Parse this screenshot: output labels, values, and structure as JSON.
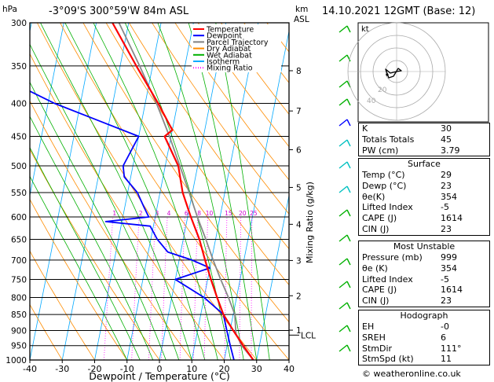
{
  "header": {
    "location": "-3°09'S  300°59'W  84m  ASL",
    "datetime": "14.10.2021  12GMT  (Base: 12)"
  },
  "axes": {
    "pressure_unit": "hPa",
    "height_unit_km": "km",
    "height_unit_asl": "ASL",
    "xlabel": "Dewpoint / Temperature (°C)",
    "mixing_ratio_label": "Mixing Ratio (g/kg)",
    "pressure_ticks": [
      "300",
      "350",
      "400",
      "450",
      "500",
      "550",
      "600",
      "650",
      "700",
      "750",
      "800",
      "850",
      "900",
      "950",
      "1000"
    ],
    "temp_ticks": [
      "-40",
      "-30",
      "-20",
      "-10",
      "0",
      "10",
      "20",
      "30",
      "40"
    ],
    "km_ticks": [
      "8",
      "7",
      "6",
      "5",
      "4",
      "3",
      "2",
      "1"
    ],
    "lcl_label": "LCL",
    "mixing_ratio_values": [
      "1",
      "2",
      "3",
      "4",
      "6",
      "8",
      "10",
      "15",
      "20",
      "25"
    ]
  },
  "legend": {
    "items": [
      {
        "label": "Temperature",
        "color": "#ff0000"
      },
      {
        "label": "Dewpoint",
        "color": "#0000ff"
      },
      {
        "label": "Parcel Trajectory",
        "color": "#808080"
      },
      {
        "label": "Dry Adiabat",
        "color": "#ff8c00"
      },
      {
        "label": "Wet Adiabat",
        "color": "#00b000"
      },
      {
        "label": "Isotherm",
        "color": "#00aaff"
      },
      {
        "label": "Mixing Ratio",
        "color": "#ff00ff"
      }
    ]
  },
  "hodograph": {
    "unit": "kt",
    "ring_labels": [
      "20",
      "40"
    ]
  },
  "indices": {
    "rows": [
      {
        "label": "K",
        "value": "30"
      },
      {
        "label": "Totals Totals",
        "value": "45"
      },
      {
        "label": "PW (cm)",
        "value": "3.79"
      }
    ]
  },
  "surface": {
    "title": "Surface",
    "rows": [
      {
        "label": "Temp (°C)",
        "value": "29"
      },
      {
        "label": "Dewp (°C)",
        "value": "23"
      },
      {
        "label": "θe(K)",
        "value": "354"
      },
      {
        "label": "Lifted Index",
        "value": "-5"
      },
      {
        "label": "CAPE (J)",
        "value": "1614"
      },
      {
        "label": "CIN (J)",
        "value": "23"
      }
    ]
  },
  "most_unstable": {
    "title": "Most Unstable",
    "rows": [
      {
        "label": "Pressure (mb)",
        "value": "999"
      },
      {
        "label": "θe (K)",
        "value": "354"
      },
      {
        "label": "Lifted Index",
        "value": "-5"
      },
      {
        "label": "CAPE (J)",
        "value": "1614"
      },
      {
        "label": "CIN (J)",
        "value": "23"
      }
    ]
  },
  "hodograph_table": {
    "title": "Hodograph",
    "rows": [
      {
        "label": "EH",
        "value": "-0"
      },
      {
        "label": "SREH",
        "value": "6"
      },
      {
        "label": "StmDir",
        "value": "111°"
      },
      {
        "label": "StmSpd (kt)",
        "value": "11"
      }
    ]
  },
  "credit": "© weatheronline.co.uk",
  "chart_data": {
    "type": "line",
    "title": "",
    "xlabel": "Dewpoint / Temperature (°C)",
    "ylabel": "hPa",
    "xlim": [
      -40,
      40
    ],
    "ylim": [
      1000,
      300
    ],
    "y_scale": "log",
    "skew": "skew-T",
    "series": [
      {
        "name": "Temperature",
        "color": "#ff0000",
        "p": [
          1000,
          950,
          900,
          850,
          800,
          750,
          700,
          650,
          600,
          550,
          500,
          450,
          440,
          400,
          350,
          300
        ],
        "t": [
          29,
          25,
          21,
          17,
          14,
          11,
          8,
          5,
          1,
          -3,
          -6,
          -12,
          -10,
          -16,
          -25,
          -35
        ]
      },
      {
        "name": "Dewpoint",
        "color": "#0000ff",
        "p": [
          1000,
          950,
          900,
          850,
          800,
          750,
          720,
          700,
          680,
          650,
          620,
          610,
          600,
          580,
          550,
          520,
          500,
          450,
          400,
          370,
          350,
          330,
          300
        ],
        "t": [
          23,
          21,
          19,
          17,
          10,
          0,
          10,
          4,
          -4,
          -8,
          -11,
          -25,
          -12,
          -14,
          -17,
          -22,
          -23,
          -20,
          -48,
          -63,
          -65,
          -63,
          -67
        ]
      },
      {
        "name": "Parcel Trajectory",
        "color": "#888888",
        "p": [
          1000,
          950,
          910,
          850,
          800,
          750,
          700,
          650,
          600,
          550,
          500,
          450,
          400,
          350,
          300
        ],
        "t": [
          29,
          24.5,
          22,
          20.5,
          17.5,
          14,
          10.5,
          7,
          3,
          -1,
          -5.5,
          -10.5,
          -16.5,
          -24,
          -33
        ]
      }
    ],
    "wind_barbs_present": true
  }
}
